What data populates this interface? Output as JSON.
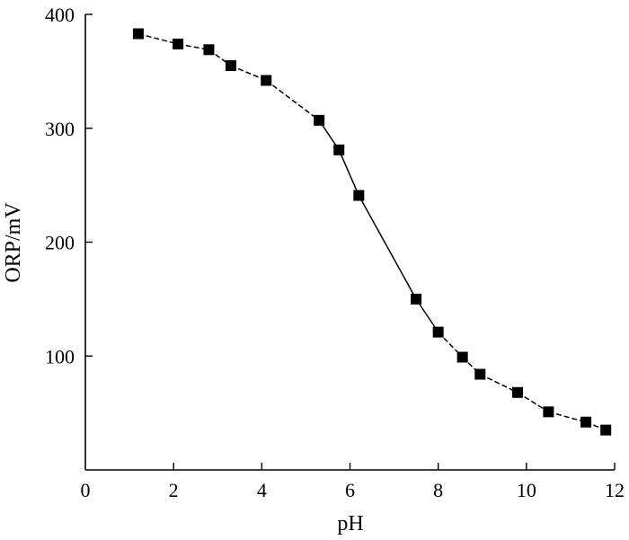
{
  "chart_data": {
    "type": "scatter",
    "title": "",
    "xlabel": "pH",
    "ylabel": "ORP/mV",
    "xlim": [
      0,
      12
    ],
    "ylim": [
      0,
      400
    ],
    "xticks": [
      0,
      2,
      4,
      6,
      8,
      10,
      12
    ],
    "yticks": [
      100,
      200,
      300,
      400
    ],
    "ytick_labels": [
      "100",
      "200",
      "300",
      "400"
    ],
    "xtick_labels": [
      "0",
      "2",
      "4",
      "6",
      "8",
      "10",
      "12"
    ],
    "origin_label": "0",
    "grid": false,
    "marker": "square",
    "connected": true,
    "series": [
      {
        "x": [
          1.2,
          2.1,
          2.8,
          3.3,
          4.1,
          5.3,
          5.75,
          6.2,
          7.5,
          8.0,
          8.55,
          8.95,
          9.8,
          10.5,
          11.35,
          11.8
        ],
        "y": [
          383,
          374,
          369,
          355,
          342,
          307,
          281,
          241,
          150,
          121,
          99,
          84,
          68,
          51,
          42,
          35
        ]
      }
    ]
  }
}
